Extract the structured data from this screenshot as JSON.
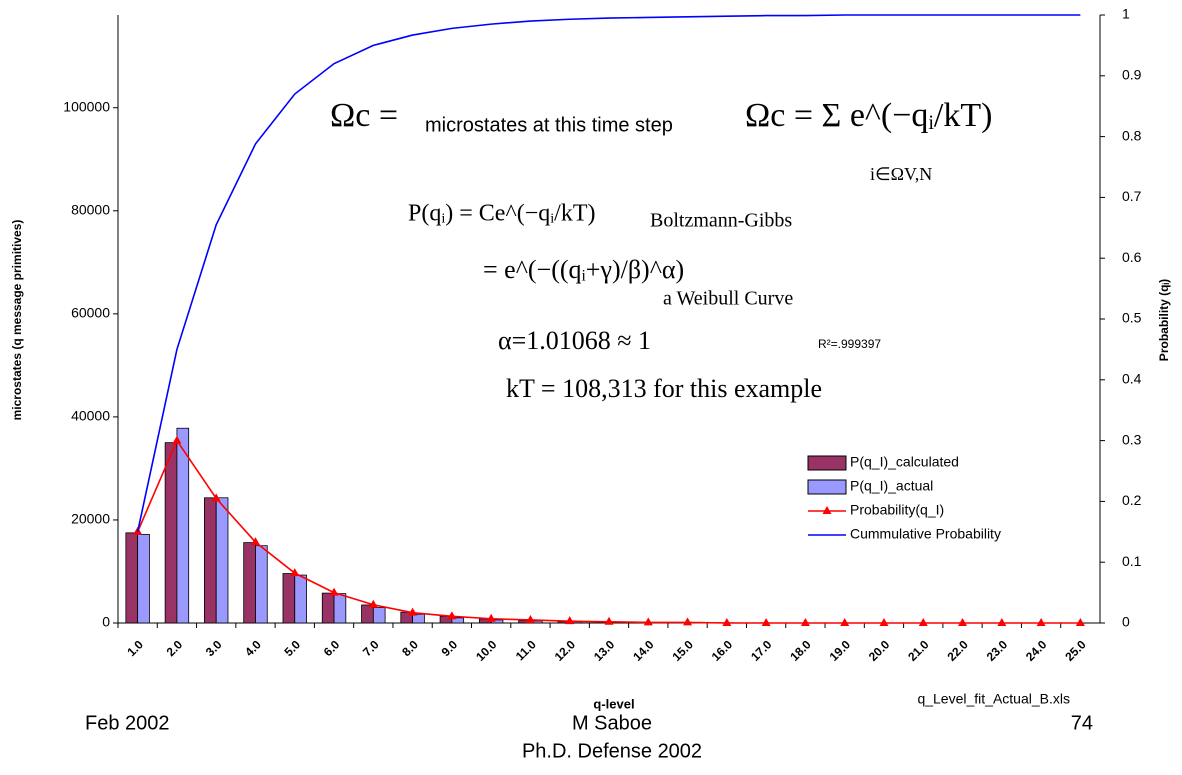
{
  "chart_data": {
    "type": "bar",
    "categories": [
      "1.0",
      "2.0",
      "3.0",
      "4.0",
      "5.0",
      "6.0",
      "7.0",
      "8.0",
      "9.0",
      "10.0",
      "11.0",
      "12.0",
      "13.0",
      "14.0",
      "15.0",
      "16.0",
      "17.0",
      "18.0",
      "19.0",
      "20.0",
      "21.0",
      "22.0",
      "23.0",
      "24.0",
      "25.0"
    ],
    "series": [
      {
        "name": "P(q_I)_calculated",
        "type": "bar",
        "color": "#993366",
        "values": [
          17500,
          35000,
          24300,
          15600,
          9600,
          5800,
          3500,
          2100,
          1300,
          800,
          500,
          300,
          200,
          120,
          80,
          50,
          30,
          20,
          10,
          10,
          0,
          0,
          0,
          0,
          0
        ]
      },
      {
        "name": "P(q_I)_actual",
        "type": "bar",
        "color": "#9999FF",
        "values": [
          17200,
          37800,
          24300,
          15000,
          9300,
          5700,
          3000,
          1700,
          1000,
          600,
          400,
          250,
          150,
          90,
          60,
          40,
          20,
          10,
          10,
          0,
          0,
          0,
          0,
          0,
          0
        ]
      },
      {
        "name": "Probability(q_I)",
        "type": "line",
        "axis": "y2",
        "color": "#FF0000",
        "values": [
          0.15,
          0.3,
          0.205,
          0.133,
          0.082,
          0.05,
          0.03,
          0.017,
          0.011,
          0.007,
          0.005,
          0.003,
          0.002,
          0.001,
          0.001,
          0,
          0,
          0,
          0,
          0,
          0,
          0,
          0,
          0,
          0
        ]
      },
      {
        "name": "Cummulative Probability",
        "type": "line",
        "axis": "y2",
        "color": "#0000FF",
        "values": [
          0.15,
          0.45,
          0.655,
          0.788,
          0.87,
          0.92,
          0.95,
          0.967,
          0.978,
          0.985,
          0.99,
          0.993,
          0.995,
          0.996,
          0.997,
          0.998,
          0.999,
          0.999,
          1,
          1,
          1,
          1,
          1,
          1,
          1
        ]
      }
    ],
    "ylim": [
      0,
      118000
    ],
    "yticks": [
      0,
      20000,
      40000,
      60000,
      80000,
      100000
    ],
    "y2lim": [
      0,
      1
    ],
    "y2ticks": [
      0,
      0.1,
      0.2,
      0.3,
      0.4,
      0.5,
      0.6,
      0.7,
      0.8,
      0.9,
      1
    ],
    "x_label": "q-level",
    "y_label": "microstates (q message primitives)",
    "y2_label": "Probability (qᵢ)",
    "annotations": [
      "Ωc =",
      "microstates at this time step",
      "Ωc = Σ e^(−qᵢ/kT)",
      "i∈ΩV,N",
      "P(qᵢ) = Ce^(−qᵢ/kT)",
      "Boltzmann-Gibbs",
      "= e^(−((qᵢ+γ)/β)^α)",
      "a Weibull Curve",
      "α=1.01068 ≈ 1",
      "R²=.999397",
      "kT = 108,313 for this example"
    ],
    "source": "q_Level_fit_Actual_B.xls"
  },
  "footer": {
    "date": "Feb  2002",
    "author": "M Saboe",
    "event": "Ph.D. Defense 2002",
    "page": "74"
  }
}
